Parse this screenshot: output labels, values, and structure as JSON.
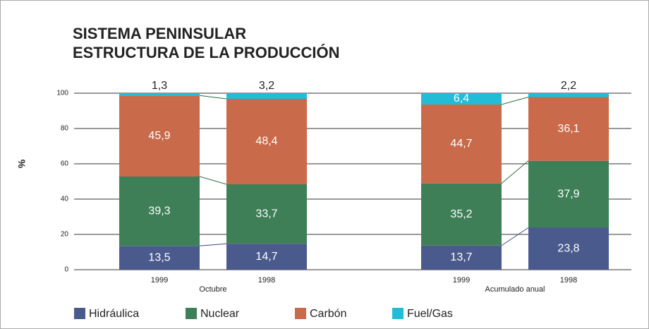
{
  "chart_data": {
    "type": "stacked_bar",
    "title": [
      "SISTEMA PENINSULAR",
      "ESTRUCTURA DE LA PRODUCCIÓN"
    ],
    "y_label": "%",
    "categories": [
      "1999",
      "1998",
      "1999",
      "1998"
    ],
    "group_labels": [
      "Octubre",
      "Acumulado anual"
    ],
    "series": [
      {
        "name": "Hidráulica",
        "color": "#4b5a8d",
        "values": [
          13.5,
          14.7,
          13.7,
          23.8
        ],
        "value_labels": [
          "13,5",
          "14,7",
          "13,7",
          "23,8"
        ]
      },
      {
        "name": "Nuclear",
        "color": "#3e7f57",
        "values": [
          39.3,
          33.7,
          35.2,
          37.9
        ],
        "value_labels": [
          "39,3",
          "33,7",
          "35,2",
          "37,9"
        ]
      },
      {
        "name": "Carbón",
        "color": "#c96a4a",
        "values": [
          45.9,
          48.4,
          44.7,
          36.1
        ],
        "value_labels": [
          "45,9",
          "48,4",
          "44,7",
          "36,1"
        ]
      },
      {
        "name": "Fuel/Gas",
        "color": "#22bcd6",
        "values": [
          1.3,
          3.2,
          6.4,
          2.2
        ],
        "value_labels": [
          "1,3",
          "3,2",
          "6,4",
          "2,2"
        ]
      }
    ],
    "ylim": [
      0,
      100
    ],
    "yticks": [
      0,
      20,
      40,
      60,
      80,
      100
    ],
    "grid": true
  }
}
